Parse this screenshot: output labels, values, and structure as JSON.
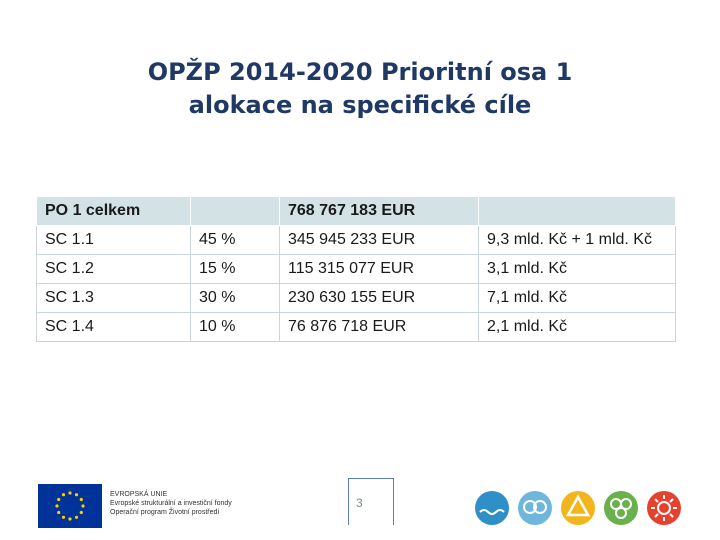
{
  "title": {
    "line1": "OPŽP 2014-2020 Prioritní osa 1",
    "line2": "alokace na specifické cíle"
  },
  "table": {
    "header": {
      "label": "PO 1 celkem",
      "share": "",
      "eur": "768 767 183 EUR",
      "czk": ""
    },
    "rows": [
      {
        "label": "SC 1.1",
        "share": "45 %",
        "eur": "345 945 233 EUR",
        "czk": "9,3 mld. Kč + 1 mld. Kč"
      },
      {
        "label": "SC 1.2",
        "share": "15 %",
        "eur": "115 315 077 EUR",
        "czk": "3,1 mld. Kč"
      },
      {
        "label": "SC 1.3",
        "share": "30 %",
        "eur": "230 630 155 EUR",
        "czk": "7,1 mld. Kč"
      },
      {
        "label": "SC 1.4",
        "share": "10 %",
        "eur": "76  876 718 EUR",
        "czk": "2,1 mld. Kč"
      }
    ]
  },
  "footer": {
    "page_number": "3",
    "eu_text": {
      "line1": "EVROPSKÁ UNIE",
      "line2": "Evropské strukturální a investiční fondy",
      "line3": "Operační program Životní prostředí"
    }
  },
  "colors": {
    "title": "#1f3864",
    "header_bg": "#d3e2e5",
    "eu_blue": "#003399",
    "eu_yellow": "#ffcc00"
  }
}
